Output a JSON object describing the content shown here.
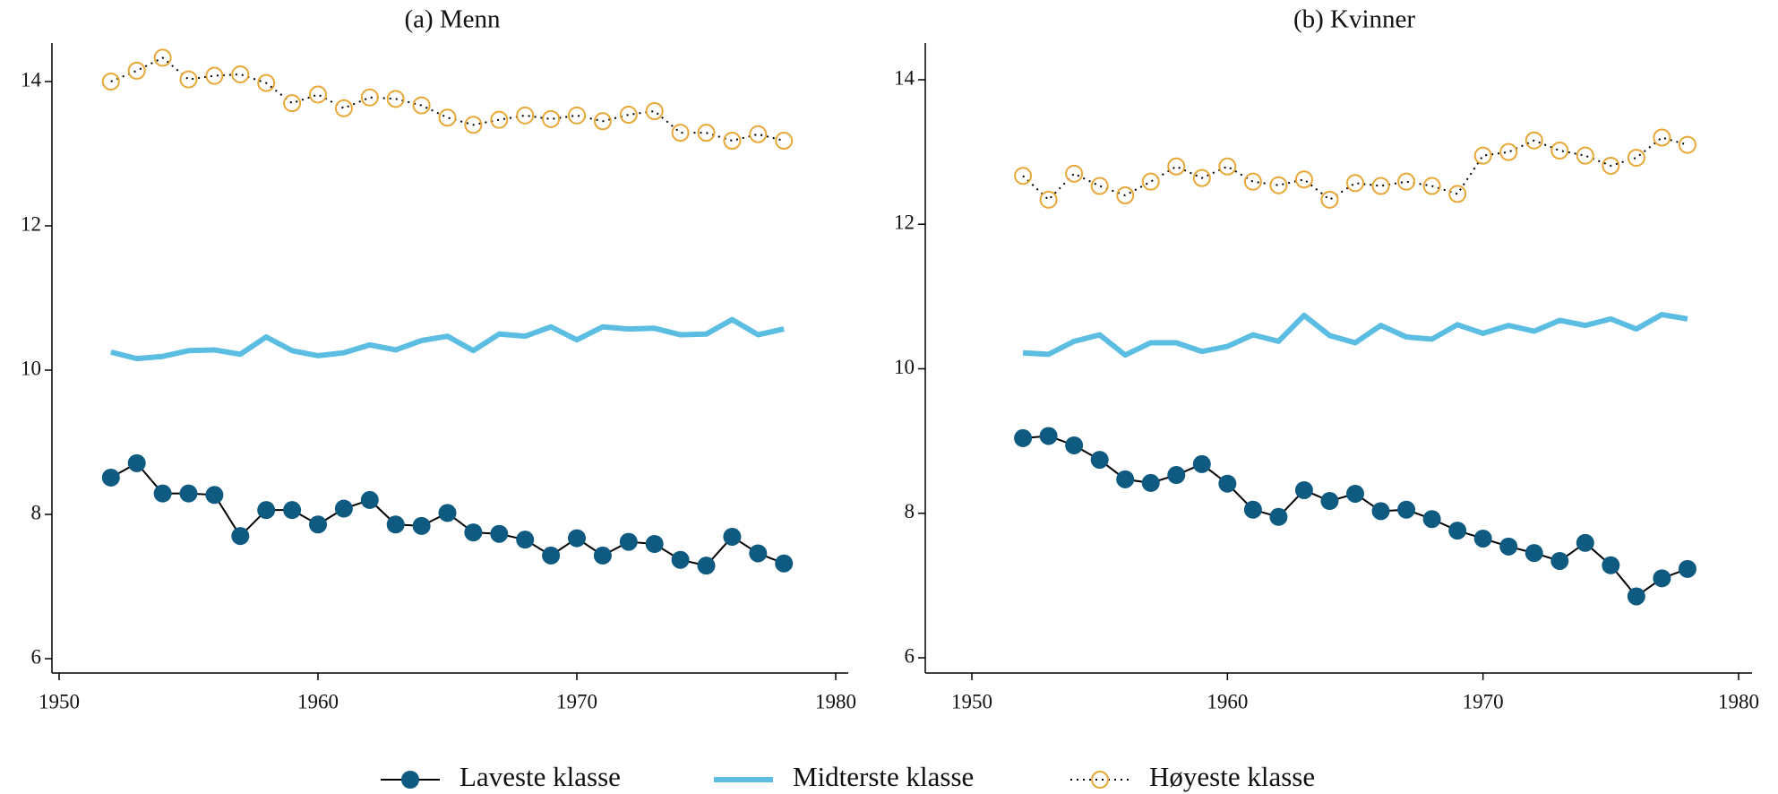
{
  "chart_data": [
    {
      "type": "line",
      "title": "(a) Menn",
      "x": [
        1952,
        1953,
        1954,
        1955,
        1956,
        1957,
        1958,
        1959,
        1960,
        1961,
        1962,
        1963,
        1964,
        1965,
        1966,
        1967,
        1968,
        1969,
        1970,
        1971,
        1972,
        1973,
        1974,
        1975,
        1976,
        1977,
        1978
      ],
      "xlim": [
        1950,
        1980
      ],
      "xticks": [
        1950,
        1960,
        1970,
        1980
      ],
      "ylim": [
        6,
        14
      ],
      "yticks": [
        6,
        8,
        10,
        12,
        14
      ],
      "series": [
        {
          "name": "Laveste klasse",
          "color": "#0e5a80",
          "line_color": "#000000",
          "line_style": "solid",
          "marker": "filled-circle",
          "values": [
            8.51,
            8.71,
            8.29,
            8.29,
            8.27,
            7.7,
            8.06,
            8.06,
            7.86,
            8.08,
            8.2,
            7.86,
            7.84,
            8.02,
            7.75,
            7.73,
            7.65,
            7.43,
            7.67,
            7.43,
            7.62,
            7.59,
            7.37,
            7.29,
            7.69,
            7.46,
            7.32
          ]
        },
        {
          "name": "Midterste klasse",
          "color": "#5bbde2",
          "line_color": "#5bbde2",
          "line_style": "thick",
          "marker": "none",
          "values": [
            10.25,
            10.16,
            10.19,
            10.27,
            10.28,
            10.22,
            10.46,
            10.27,
            10.2,
            10.24,
            10.35,
            10.28,
            10.41,
            10.47,
            10.27,
            10.5,
            10.47,
            10.6,
            10.42,
            10.6,
            10.57,
            10.58,
            10.49,
            10.5,
            10.7,
            10.49,
            10.57
          ]
        },
        {
          "name": "Høyeste klasse",
          "color": "#e8a838",
          "line_color": "#000000",
          "line_style": "dotted",
          "marker": "open-circle",
          "values": [
            14.0,
            14.15,
            14.33,
            14.03,
            14.08,
            14.1,
            13.98,
            13.7,
            13.82,
            13.63,
            13.78,
            13.76,
            13.67,
            13.5,
            13.4,
            13.47,
            13.53,
            13.48,
            13.53,
            13.45,
            13.54,
            13.59,
            13.29,
            13.29,
            13.18,
            13.27,
            13.18
          ]
        }
      ]
    },
    {
      "type": "line",
      "title": "(b) Kvinner",
      "x": [
        1952,
        1953,
        1954,
        1955,
        1956,
        1957,
        1958,
        1959,
        1960,
        1961,
        1962,
        1963,
        1964,
        1965,
        1966,
        1967,
        1968,
        1969,
        1970,
        1971,
        1972,
        1973,
        1974,
        1975,
        1976,
        1977,
        1978
      ],
      "xlim": [
        1950,
        1980
      ],
      "xticks": [
        1950,
        1960,
        1970,
        1980
      ],
      "ylim": [
        6,
        14
      ],
      "yticks": [
        6,
        8,
        10,
        12,
        14
      ],
      "series": [
        {
          "color": "#0e5a80",
          "line_color": "#000000",
          "line_style": "solid",
          "marker": "filled-circle",
          "values": [
            9.04,
            9.07,
            8.94,
            8.74,
            8.47,
            8.42,
            8.53,
            8.68,
            8.41,
            8.05,
            7.95,
            8.32,
            8.17,
            8.27,
            8.03,
            8.05,
            7.92,
            7.76,
            7.65,
            7.54,
            7.45,
            7.34,
            7.59,
            7.28,
            6.85,
            7.1,
            7.23
          ]
        },
        {
          "color": "#5bbde2",
          "line_color": "#5bbde2",
          "line_style": "thick",
          "marker": "none",
          "values": [
            10.22,
            10.2,
            10.38,
            10.47,
            10.19,
            10.36,
            10.36,
            10.24,
            10.31,
            10.47,
            10.38,
            10.74,
            10.46,
            10.36,
            10.6,
            10.44,
            10.41,
            10.61,
            10.49,
            10.6,
            10.52,
            10.67,
            10.6,
            10.69,
            10.55,
            10.75,
            10.69
          ]
        },
        {
          "color": "#e8a838",
          "line_color": "#000000",
          "line_style": "dotted",
          "marker": "open-circle",
          "values": [
            12.67,
            12.34,
            12.7,
            12.53,
            12.4,
            12.59,
            12.8,
            12.64,
            12.8,
            12.59,
            12.54,
            12.62,
            12.34,
            12.57,
            12.53,
            12.59,
            12.53,
            12.42,
            12.95,
            13.0,
            13.16,
            13.02,
            12.95,
            12.81,
            12.92,
            13.2,
            13.1
          ]
        }
      ]
    }
  ]
}
